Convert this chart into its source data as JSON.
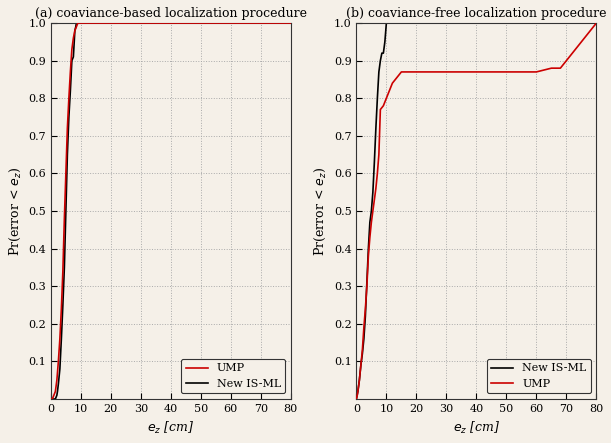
{
  "title_a": "(a) coaviance-based localization procedure",
  "title_b": "(b) coaviance-free localization procedure",
  "xlabel_a": "$e_z$ [cm]",
  "xlabel_b": "$e_z$ [cm]",
  "ylabel": "Pr(error < $e_z$)",
  "xlim": [
    0,
    80
  ],
  "ylim": [
    0,
    1.0
  ],
  "yticks": [
    0.1,
    0.2,
    0.3,
    0.4,
    0.5,
    0.6,
    0.7,
    0.8,
    0.9,
    1.0
  ],
  "xticks": [
    0,
    10,
    20,
    30,
    40,
    50,
    60,
    70,
    80
  ],
  "color_ump": "#cc0000",
  "color_isml": "#000000",
  "bg_color": "#f5f0e8",
  "grid_color": "#aaaaaa",
  "legend_a": [
    "UMP",
    "New IS-ML"
  ],
  "legend_b": [
    "New IS-ML",
    "UMP"
  ],
  "panel_a_isml_x": [
    0,
    0.5,
    1.0,
    1.5,
    2.0,
    2.2,
    2.5,
    3.0,
    3.5,
    4.0,
    4.5,
    5.0,
    5.5,
    6.0,
    6.5,
    7.0,
    7.5,
    8.0,
    8.3,
    8.5,
    9.0,
    9.5,
    10.0,
    80
  ],
  "panel_a_isml_y": [
    0,
    0.0,
    0.0,
    0.0,
    0.01,
    0.02,
    0.04,
    0.08,
    0.16,
    0.25,
    0.35,
    0.5,
    0.65,
    0.75,
    0.82,
    0.9,
    0.91,
    0.98,
    0.99,
    1.0,
    1.0,
    1.0,
    1.0,
    1.0
  ],
  "panel_a_ump_x": [
    0,
    0.5,
    1.0,
    1.5,
    2.0,
    2.5,
    3.0,
    3.5,
    4.0,
    4.5,
    5.0,
    5.5,
    6.0,
    6.5,
    7.0,
    7.5,
    8.0,
    8.5,
    9.0,
    80
  ],
  "panel_a_ump_y": [
    0,
    0.0,
    0.01,
    0.02,
    0.05,
    0.1,
    0.16,
    0.24,
    0.34,
    0.48,
    0.6,
    0.72,
    0.8,
    0.87,
    0.93,
    0.96,
    0.98,
    0.99,
    1.0,
    1.0
  ],
  "panel_b_isml_x": [
    0,
    0.5,
    1.0,
    1.5,
    2.0,
    2.5,
    3.0,
    3.5,
    4.0,
    4.5,
    5.0,
    5.5,
    6.0,
    6.5,
    7.0,
    7.5,
    8.0,
    8.5,
    9.0,
    9.5,
    10.0,
    10.5,
    11.0,
    80
  ],
  "panel_b_isml_y": [
    0,
    0.02,
    0.05,
    0.09,
    0.12,
    0.16,
    0.22,
    0.31,
    0.4,
    0.47,
    0.5,
    0.55,
    0.63,
    0.72,
    0.8,
    0.87,
    0.9,
    0.92,
    0.92,
    0.95,
    1.0,
    1.0,
    1.0,
    1.0
  ],
  "panel_b_ump_x": [
    0,
    0.3,
    0.5,
    1.0,
    1.5,
    2.0,
    2.5,
    3.0,
    3.5,
    4.0,
    4.5,
    5.0,
    5.5,
    6.0,
    6.5,
    7.0,
    7.5,
    8.0,
    9.0,
    10.0,
    12.0,
    14.0,
    15.0,
    20.0,
    21.0,
    40.0,
    60.0,
    65.0,
    68.0,
    70.0,
    72.0,
    75.0,
    78.0,
    80.0
  ],
  "panel_b_ump_y": [
    0,
    0.01,
    0.02,
    0.05,
    0.09,
    0.13,
    0.19,
    0.24,
    0.3,
    0.38,
    0.43,
    0.47,
    0.5,
    0.53,
    0.56,
    0.6,
    0.65,
    0.77,
    0.78,
    0.8,
    0.84,
    0.86,
    0.87,
    0.87,
    0.87,
    0.87,
    0.87,
    0.88,
    0.88,
    0.9,
    0.92,
    0.95,
    0.98,
    1.0
  ]
}
